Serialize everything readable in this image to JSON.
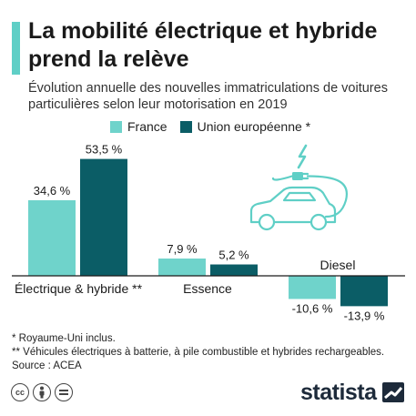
{
  "title": "La mobilité électrique et hybride prend la relève",
  "subtitle": "Évolution annuelle des nouvelles immatriculations de voitures particulières selon leur motorisation en 2019",
  "colors": {
    "accent": "#5fcfc6",
    "france": "#6fd3cb",
    "eu": "#0b5d66",
    "axis": "#1a1a1a"
  },
  "chart_data": {
    "type": "bar",
    "categories": [
      "Électrique & hybride **",
      "Essence",
      "Diesel"
    ],
    "series": [
      {
        "name": "France",
        "values": [
          34.6,
          7.9,
          -10.6
        ],
        "labels": [
          "34,6 %",
          "7,9 %",
          "-10,6 %"
        ]
      },
      {
        "name": "Union européenne *",
        "values": [
          53.5,
          5.2,
          -13.9
        ],
        "labels": [
          "53,5 %",
          "5,2 %",
          "-13,9 %"
        ]
      }
    ],
    "ylim": [
      -15,
      60
    ],
    "grid": false,
    "legend": "top"
  },
  "footnotes": [
    "*   Royaume-Uni inclus.",
    "** Véhicules électriques à batterie, à pile combustible et hybrides rechargeables.",
    "Source : ACEA"
  ],
  "icons": {
    "illustration": "electric-car-icon",
    "license": [
      "cc-icon",
      "by-icon",
      "nd-icon"
    ],
    "brand": "statista-logo-icon"
  },
  "brand": "statista"
}
